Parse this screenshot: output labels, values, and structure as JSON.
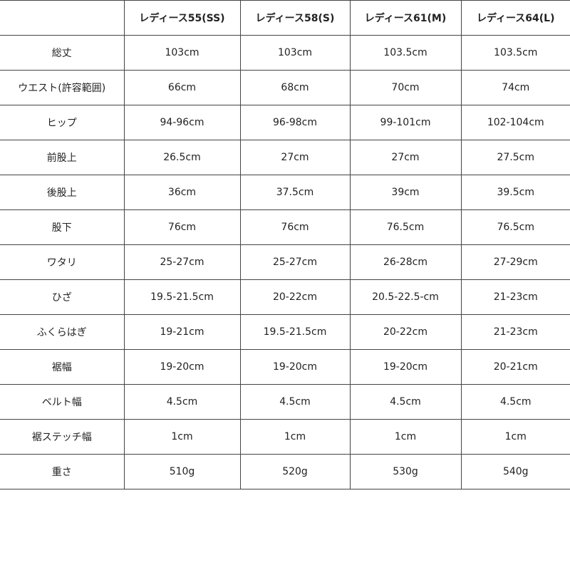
{
  "table": {
    "header": [
      "レディース55(SS)",
      "レディース58(S)",
      "レディース61(M)",
      "レディース64(L)"
    ],
    "rows": [
      [
        "総丈",
        "103cm",
        "103cm",
        "103.5cm",
        "103.5cm"
      ],
      [
        "ウエスト(許容範囲)",
        "66cm",
        "68cm",
        "70cm",
        "74cm"
      ],
      [
        "ヒップ",
        "94-96cm",
        "96-98cm",
        "99-101cm",
        "102-104cm"
      ],
      [
        "前股上",
        "26.5cm",
        "27cm",
        "27cm",
        "27.5cm"
      ],
      [
        "後股上",
        "36cm",
        "37.5cm",
        "39cm",
        "39.5cm"
      ],
      [
        "股下",
        "76cm",
        "76cm",
        "76.5cm",
        "76.5cm"
      ],
      [
        "ワタリ",
        "25-27cm",
        "25-27cm",
        "26-28cm",
        "27-29cm"
      ],
      [
        "ひざ",
        "19.5-21.5cm",
        "20-22cm",
        "20.5-22.5-cm",
        "21-23cm"
      ],
      [
        "ふくらはぎ",
        "19-21cm",
        "19.5-21.5cm",
        "20-22cm",
        "21-23cm"
      ],
      [
        "裾幅",
        "19-20cm",
        "19-20cm",
        "19-20cm",
        "20-21cm"
      ],
      [
        "ベルト幅",
        "4.5cm",
        "4.5cm",
        "4.5cm",
        "4.5cm"
      ],
      [
        "裾ステッチ幅",
        "1cm",
        "1cm",
        "1cm",
        "1cm"
      ],
      [
        "重さ",
        "510g",
        "520g",
        "530g",
        "540g"
      ]
    ]
  }
}
